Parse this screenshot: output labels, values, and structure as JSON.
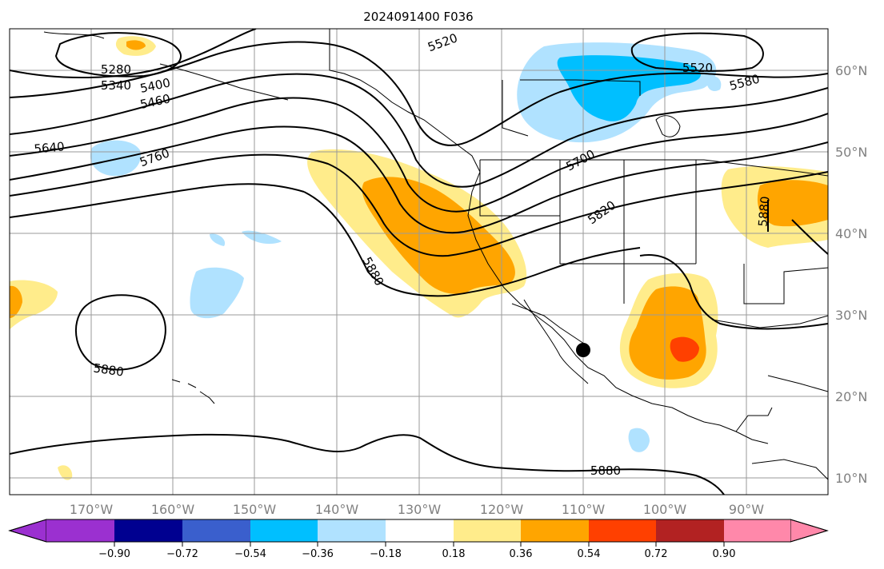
{
  "title": "2024091400 F036",
  "lon_labels": [
    "170°W",
    "160°W",
    "150°W",
    "140°W",
    "130°W",
    "120°W",
    "110°W",
    "100°W",
    "90°W"
  ],
  "lat_labels": [
    "60°N",
    "50°N",
    "40°N",
    "30°N",
    "20°N",
    "10°N"
  ],
  "contour_labels": [
    "5280",
    "5340",
    "5400",
    "5460",
    "5520",
    "5520",
    "5580",
    "5640",
    "5760",
    "5700",
    "5820",
    "5880",
    "5880",
    "5880",
    "5880"
  ],
  "colorbar": {
    "ticks": [
      "−0.90",
      "−0.72",
      "−0.54",
      "−0.36",
      "−0.18",
      "0.18",
      "0.36",
      "0.54",
      "0.72",
      "0.90"
    ],
    "colors": [
      "#9b30d0",
      "#000090",
      "#3a5fcd",
      "#00bfff",
      "#b0e2ff",
      "#ffffff",
      "#ffec8b",
      "#ffa500",
      "#ff4000",
      "#b22222",
      "#ff88aa"
    ]
  },
  "legend_colors": {
    "light_blue": "#b0e2ff",
    "blue": "#00bfff",
    "light_yellow": "#ffec8b",
    "orange": "#ffa500",
    "red_orange": "#ff4000"
  }
}
